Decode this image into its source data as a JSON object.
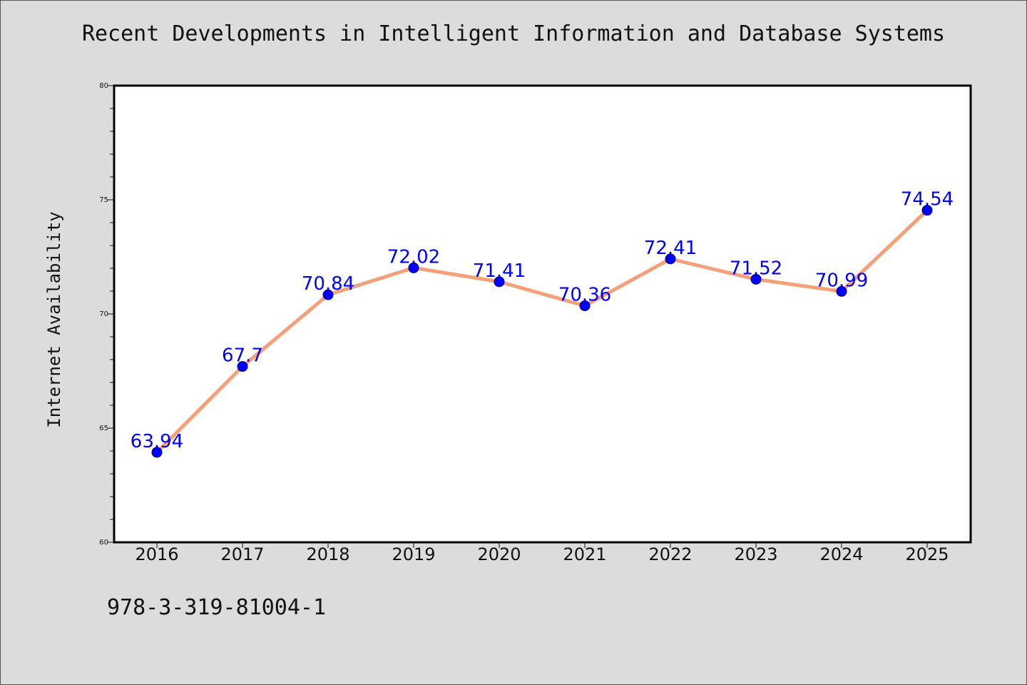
{
  "chart_data": {
    "type": "line",
    "title": "Recent Developments in Intelligent Information and Database Systems",
    "xlabel": "",
    "ylabel": "Internet Availability",
    "categories": [
      "2016",
      "2017",
      "2018",
      "2019",
      "2020",
      "2021",
      "2022",
      "2023",
      "2024",
      "2025"
    ],
    "series": [
      {
        "values": [
          63.94,
          67.7,
          70.84,
          72.02,
          71.41,
          70.36,
          72.41,
          71.52,
          70.99,
          74.54
        ],
        "data_labels": [
          "63.94",
          "67.7",
          "70.84",
          "72.02",
          "71.41",
          "70.36",
          "72.41",
          "71.52",
          "70.99",
          "74.54"
        ]
      }
    ],
    "ylim": [
      60,
      80
    ],
    "yticks": [
      "60",
      "65",
      "70",
      "75",
      "80"
    ],
    "grid": false,
    "colors": {
      "line": "#f4a07a",
      "marker": "#0000ff",
      "label": "#0000ff",
      "plot_background": "#ffffff",
      "page_background": "#dcdcdc"
    }
  },
  "footer": {
    "code": "978-3-319-81004-1"
  }
}
